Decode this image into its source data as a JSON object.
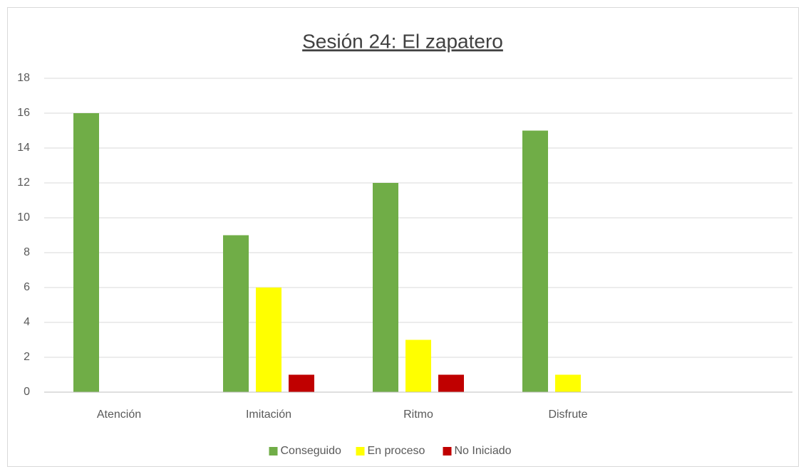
{
  "chart_data": {
    "type": "bar",
    "title": "Sesión 24: El zapatero",
    "categories": [
      "Atención",
      "Imitación",
      "Ritmo",
      "Disfrute",
      null
    ],
    "series": [
      {
        "name": "Conseguido",
        "color": "#70ad47",
        "values": [
          16,
          9,
          12,
          15,
          null
        ]
      },
      {
        "name": "En proceso",
        "color": "#ffff00",
        "values": [
          0,
          6,
          3,
          1,
          null
        ]
      },
      {
        "name": "No Iniciado",
        "color": "#c00000",
        "values": [
          0,
          1,
          1,
          0,
          null
        ]
      }
    ],
    "ylim": [
      0,
      18
    ],
    "yticks": [
      0,
      2,
      4,
      6,
      8,
      10,
      12,
      14,
      16,
      18
    ],
    "grid": true,
    "legend": "bottom"
  }
}
